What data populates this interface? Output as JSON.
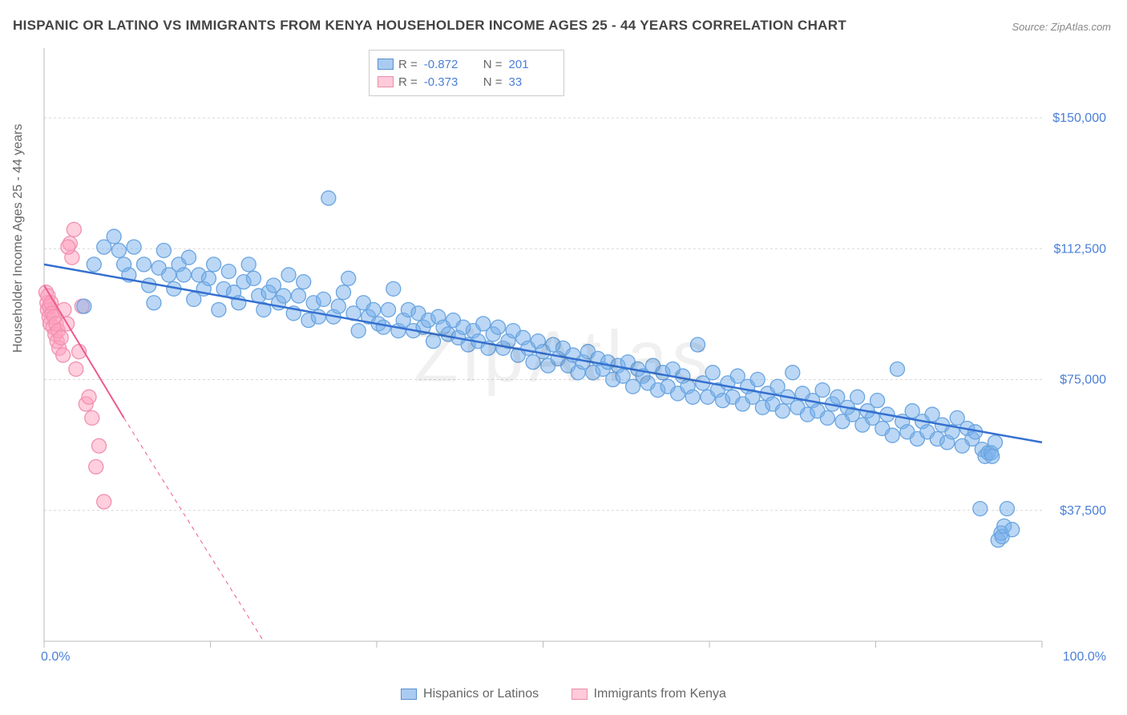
{
  "title": "HISPANIC OR LATINO VS IMMIGRANTS FROM KENYA HOUSEHOLDER INCOME AGES 25 - 44 YEARS CORRELATION CHART",
  "source": "Source: ZipAtlas.com",
  "ylabel": "Householder Income Ages 25 - 44 years",
  "watermark": "ZipAtlas",
  "chart": {
    "type": "scatter",
    "xlim": [
      0,
      100
    ],
    "ylim": [
      0,
      170000
    ],
    "y_ticks": [
      37500,
      75000,
      112500,
      150000
    ],
    "y_tick_labels": [
      "$37,500",
      "$75,000",
      "$112,500",
      "$150,000"
    ],
    "x_tick_positions": [
      0,
      16.67,
      33.33,
      50,
      66.67,
      83.33,
      100
    ],
    "x_labels": {
      "min": "0.0%",
      "max": "100.0%"
    },
    "grid_color": "#d8d8d8",
    "background_color": "#ffffff",
    "axis_color": "#bbbbbb",
    "tick_label_color": "#4a7fd8",
    "legend_top": {
      "rows": [
        {
          "swatch": "blue",
          "r_label": "R =",
          "r_val": "-0.872",
          "n_label": "N =",
          "n_val": "201"
        },
        {
          "swatch": "pink",
          "r_label": "R =",
          "r_val": "-0.373",
          "n_label": "N =",
          "n_val": "33"
        }
      ]
    },
    "legend_bottom": {
      "items": [
        {
          "swatch": "blue",
          "label": "Hispanics or Latinos"
        },
        {
          "swatch": "pink",
          "label": "Immigrants from Kenya"
        }
      ]
    },
    "series_blue": {
      "color_fill": "rgba(120,175,235,0.5)",
      "color_stroke": "#6aa5e0",
      "marker_r": 9,
      "trend": {
        "x1": 0,
        "y1": 108000,
        "x2": 100,
        "y2": 57000,
        "stroke": "#3570d0",
        "w": 2.5
      },
      "points": [
        [
          4,
          96000
        ],
        [
          5,
          108000
        ],
        [
          6,
          113000
        ],
        [
          7,
          116000
        ],
        [
          7.5,
          112000
        ],
        [
          8,
          108000
        ],
        [
          8.5,
          105000
        ],
        [
          9,
          113000
        ],
        [
          10,
          108000
        ],
        [
          10.5,
          102000
        ],
        [
          11,
          97000
        ],
        [
          11.5,
          107000
        ],
        [
          12,
          112000
        ],
        [
          12.5,
          105000
        ],
        [
          13,
          101000
        ],
        [
          13.5,
          108000
        ],
        [
          14,
          105000
        ],
        [
          14.5,
          110000
        ],
        [
          15,
          98000
        ],
        [
          15.5,
          105000
        ],
        [
          16,
          101000
        ],
        [
          16.5,
          104000
        ],
        [
          17,
          108000
        ],
        [
          17.5,
          95000
        ],
        [
          18,
          101000
        ],
        [
          18.5,
          106000
        ],
        [
          19,
          100000
        ],
        [
          19.5,
          97000
        ],
        [
          20,
          103000
        ],
        [
          20.5,
          108000
        ],
        [
          21,
          104000
        ],
        [
          21.5,
          99000
        ],
        [
          22,
          95000
        ],
        [
          22.5,
          100000
        ],
        [
          23,
          102000
        ],
        [
          23.5,
          97000
        ],
        [
          24,
          99000
        ],
        [
          24.5,
          105000
        ],
        [
          25,
          94000
        ],
        [
          25.5,
          99000
        ],
        [
          26,
          103000
        ],
        [
          26.5,
          92000
        ],
        [
          27,
          97000
        ],
        [
          27.5,
          93000
        ],
        [
          28,
          98000
        ],
        [
          28.5,
          127000
        ],
        [
          29,
          93000
        ],
        [
          29.5,
          96000
        ],
        [
          30,
          100000
        ],
        [
          30.5,
          104000
        ],
        [
          31,
          94000
        ],
        [
          31.5,
          89000
        ],
        [
          32,
          97000
        ],
        [
          32.5,
          93000
        ],
        [
          33,
          95000
        ],
        [
          33.5,
          91000
        ],
        [
          34,
          90000
        ],
        [
          34.5,
          95000
        ],
        [
          35,
          101000
        ],
        [
          35.5,
          89000
        ],
        [
          36,
          92000
        ],
        [
          36.5,
          95000
        ],
        [
          37,
          89000
        ],
        [
          37.5,
          94000
        ],
        [
          38,
          90000
        ],
        [
          38.5,
          92000
        ],
        [
          39,
          86000
        ],
        [
          39.5,
          93000
        ],
        [
          40,
          90000
        ],
        [
          40.5,
          88000
        ],
        [
          41,
          92000
        ],
        [
          41.5,
          87000
        ],
        [
          42,
          90000
        ],
        [
          42.5,
          85000
        ],
        [
          43,
          89000
        ],
        [
          43.5,
          86000
        ],
        [
          44,
          91000
        ],
        [
          44.5,
          84000
        ],
        [
          45,
          88000
        ],
        [
          45.5,
          90000
        ],
        [
          46,
          84000
        ],
        [
          46.5,
          86000
        ],
        [
          47,
          89000
        ],
        [
          47.5,
          82000
        ],
        [
          48,
          87000
        ],
        [
          48.5,
          84000
        ],
        [
          49,
          80000
        ],
        [
          49.5,
          86000
        ],
        [
          50,
          83000
        ],
        [
          50.5,
          79000
        ],
        [
          51,
          85000
        ],
        [
          51.5,
          81000
        ],
        [
          52,
          84000
        ],
        [
          52.5,
          79000
        ],
        [
          53,
          82000
        ],
        [
          53.5,
          77000
        ],
        [
          54,
          80000
        ],
        [
          54.5,
          83000
        ],
        [
          55,
          77000
        ],
        [
          55.5,
          81000
        ],
        [
          56,
          78000
        ],
        [
          56.5,
          80000
        ],
        [
          57,
          75000
        ],
        [
          57.5,
          79000
        ],
        [
          58,
          76000
        ],
        [
          58.5,
          80000
        ],
        [
          59,
          73000
        ],
        [
          59.5,
          78000
        ],
        [
          60,
          76000
        ],
        [
          60.5,
          74000
        ],
        [
          61,
          79000
        ],
        [
          61.5,
          72000
        ],
        [
          62,
          77000
        ],
        [
          62.5,
          73000
        ],
        [
          63,
          78000
        ],
        [
          63.5,
          71000
        ],
        [
          64,
          76000
        ],
        [
          64.5,
          73000
        ],
        [
          65,
          70000
        ],
        [
          65.5,
          85000
        ],
        [
          66,
          74000
        ],
        [
          66.5,
          70000
        ],
        [
          67,
          77000
        ],
        [
          67.5,
          72000
        ],
        [
          68,
          69000
        ],
        [
          68.5,
          74000
        ],
        [
          69,
          70000
        ],
        [
          69.5,
          76000
        ],
        [
          70,
          68000
        ],
        [
          70.5,
          73000
        ],
        [
          71,
          70000
        ],
        [
          71.5,
          75000
        ],
        [
          72,
          67000
        ],
        [
          72.5,
          71000
        ],
        [
          73,
          68000
        ],
        [
          73.5,
          73000
        ],
        [
          74,
          66000
        ],
        [
          74.5,
          70000
        ],
        [
          75,
          77000
        ],
        [
          75.5,
          67000
        ],
        [
          76,
          71000
        ],
        [
          76.5,
          65000
        ],
        [
          77,
          69000
        ],
        [
          77.5,
          66000
        ],
        [
          78,
          72000
        ],
        [
          78.5,
          64000
        ],
        [
          79,
          68000
        ],
        [
          79.5,
          70000
        ],
        [
          80,
          63000
        ],
        [
          80.5,
          67000
        ],
        [
          81,
          65000
        ],
        [
          81.5,
          70000
        ],
        [
          82,
          62000
        ],
        [
          82.5,
          66000
        ],
        [
          83,
          64000
        ],
        [
          83.5,
          69000
        ],
        [
          84,
          61000
        ],
        [
          84.5,
          65000
        ],
        [
          85,
          59000
        ],
        [
          85.5,
          78000
        ],
        [
          86,
          63000
        ],
        [
          86.5,
          60000
        ],
        [
          87,
          66000
        ],
        [
          87.5,
          58000
        ],
        [
          88,
          63000
        ],
        [
          88.5,
          60000
        ],
        [
          89,
          65000
        ],
        [
          89.5,
          58000
        ],
        [
          90,
          62000
        ],
        [
          90.5,
          57000
        ],
        [
          91,
          60000
        ],
        [
          91.5,
          64000
        ],
        [
          92,
          56000
        ],
        [
          92.5,
          61000
        ],
        [
          93,
          58000
        ],
        [
          93.3,
          60000
        ],
        [
          93.8,
          38000
        ],
        [
          94,
          55000
        ],
        [
          94.3,
          53000
        ],
        [
          94.6,
          54000
        ],
        [
          94.9,
          54000
        ],
        [
          95,
          53000
        ],
        [
          95.3,
          57000
        ],
        [
          95.6,
          29000
        ],
        [
          95.9,
          31000
        ],
        [
          96,
          30000
        ],
        [
          96.2,
          33000
        ],
        [
          96.5,
          38000
        ],
        [
          97,
          32000
        ]
      ]
    },
    "series_pink": {
      "color_fill": "rgba(255,160,190,0.5)",
      "color_stroke": "#f090b0",
      "marker_r": 9,
      "trend_solid": {
        "x1": 0,
        "y1": 102000,
        "x2": 8,
        "y2": 64000,
        "stroke": "#ef5a8a",
        "w": 2
      },
      "trend_dash": {
        "x1": 8,
        "y1": 64000,
        "x2": 22,
        "y2": 0,
        "stroke": "#ef5a8a",
        "w": 1,
        "dash": "5,5"
      },
      "points": [
        [
          0.2,
          100000
        ],
        [
          0.3,
          97000
        ],
        [
          0.35,
          95000
        ],
        [
          0.4,
          99000
        ],
        [
          0.5,
          93000
        ],
        [
          0.55,
          96000
        ],
        [
          0.6,
          91000
        ],
        [
          0.7,
          97000
        ],
        [
          0.8,
          94000
        ],
        [
          0.9,
          90000
        ],
        [
          1.0,
          93000
        ],
        [
          1.1,
          88000
        ],
        [
          1.2,
          91000
        ],
        [
          1.3,
          86000
        ],
        [
          1.4,
          89000
        ],
        [
          1.5,
          84000
        ],
        [
          1.7,
          87000
        ],
        [
          1.9,
          82000
        ],
        [
          2.0,
          95000
        ],
        [
          2.3,
          91000
        ],
        [
          2.6,
          114000
        ],
        [
          2.8,
          110000
        ],
        [
          3.2,
          78000
        ],
        [
          3.5,
          83000
        ],
        [
          3.8,
          96000
        ],
        [
          4.2,
          68000
        ],
        [
          4.5,
          70000
        ],
        [
          4.8,
          64000
        ],
        [
          5.2,
          50000
        ],
        [
          5.5,
          56000
        ],
        [
          6.0,
          40000
        ],
        [
          3.0,
          118000
        ],
        [
          2.4,
          113000
        ]
      ]
    }
  }
}
